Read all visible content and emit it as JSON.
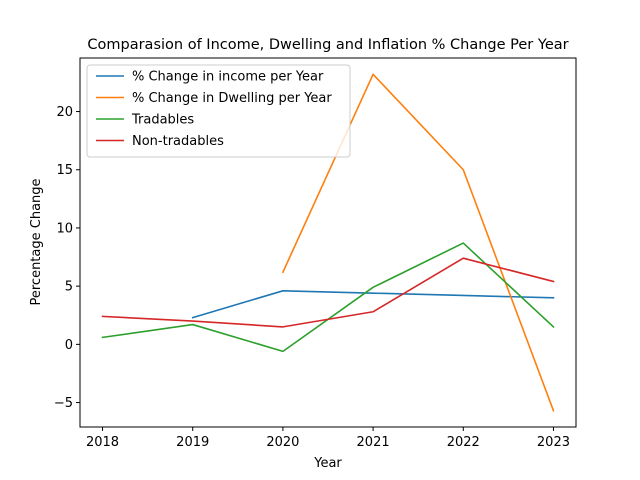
{
  "chart_data": {
    "type": "line",
    "title": "Comparasion of Income, Dwelling and Inflation % Change Per Year",
    "xlabel": "Year",
    "ylabel": "Percentage Change",
    "x": [
      2018,
      2019,
      2020,
      2021,
      2022,
      2023
    ],
    "xlim": [
      2017.75,
      2023.25
    ],
    "ylim": [
      -7.1,
      24.6
    ],
    "yticks": [
      -5,
      0,
      5,
      10,
      15,
      20
    ],
    "grid": false,
    "legend_position": "top-left",
    "series": [
      {
        "name": "% Change in income per Year",
        "color": "#1f77b4",
        "values": [
          null,
          2.3,
          4.6,
          4.4,
          4.2,
          4.0
        ]
      },
      {
        "name": "% Change in Dwelling per Year",
        "color": "#ff7f0e",
        "values": [
          null,
          null,
          6.2,
          23.2,
          15.0,
          -5.7
        ]
      },
      {
        "name": "Tradables",
        "color": "#2ca02c",
        "values": [
          0.6,
          1.7,
          -0.6,
          4.9,
          8.7,
          1.5
        ]
      },
      {
        "name": "Non-tradables",
        "color": "#d62728",
        "values": [
          2.4,
          2.0,
          1.5,
          2.8,
          7.4,
          5.4
        ]
      }
    ]
  }
}
